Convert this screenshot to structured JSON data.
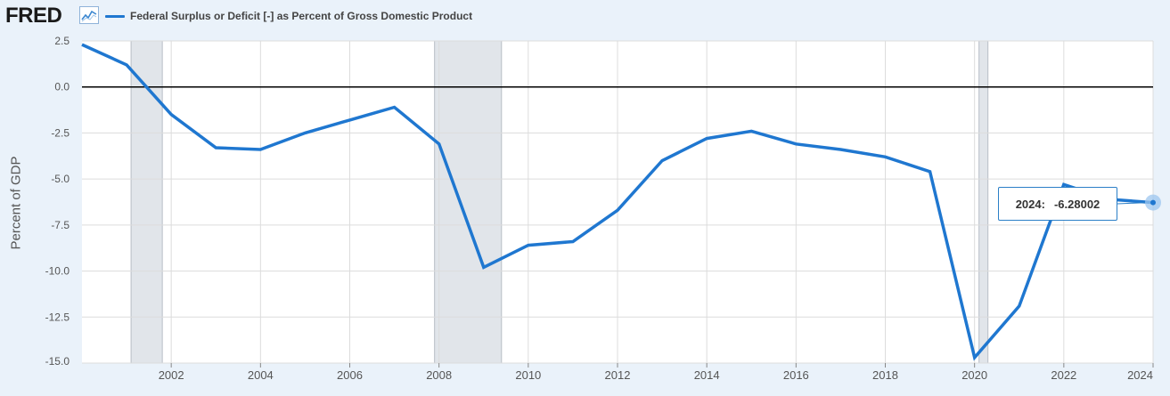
{
  "header": {
    "logo_text": "FRED"
  },
  "colors": {
    "series": "#1f77d0",
    "recession": "#e1e5ea",
    "plot_bg": "#ffffff",
    "page_bg": "#eaf2fa",
    "grid": "#dcdcdc"
  },
  "tooltip": {
    "year": "2024:",
    "value": "-6.28002"
  },
  "chart_data": {
    "type": "line",
    "title": "",
    "xlabel": "",
    "ylabel": "Percent of GDP",
    "xlim": [
      2000,
      2024
    ],
    "ylim": [
      -15.0,
      2.5
    ],
    "x_ticks": [
      2002,
      2004,
      2006,
      2008,
      2010,
      2012,
      2014,
      2016,
      2018,
      2020,
      2022,
      2024
    ],
    "y_ticks": [
      2.5,
      0.0,
      -2.5,
      -5.0,
      -7.5,
      -10.0,
      -12.5,
      -15.0
    ],
    "grid": true,
    "legend_position": "top-left",
    "recessions": [
      [
        2001.1,
        2001.8
      ],
      [
        2007.9,
        2009.4
      ],
      [
        2020.1,
        2020.3
      ]
    ],
    "series": [
      {
        "name": "Federal Surplus or Deficit [-] as Percent of Gross Domestic Product",
        "x": [
          2000,
          2001,
          2002,
          2003,
          2004,
          2005,
          2006,
          2007,
          2008,
          2009,
          2010,
          2011,
          2012,
          2013,
          2014,
          2015,
          2016,
          2017,
          2018,
          2019,
          2020,
          2021,
          2022,
          2023,
          2024
        ],
        "values": [
          2.3,
          1.2,
          -1.5,
          -3.3,
          -3.4,
          -2.5,
          -1.8,
          -1.1,
          -3.1,
          -9.8,
          -8.6,
          -8.4,
          -6.7,
          -4.0,
          -2.8,
          -2.4,
          -3.1,
          -3.4,
          -3.8,
          -4.6,
          -14.7,
          -11.9,
          -5.3,
          -6.1,
          -6.28002
        ]
      }
    ]
  }
}
